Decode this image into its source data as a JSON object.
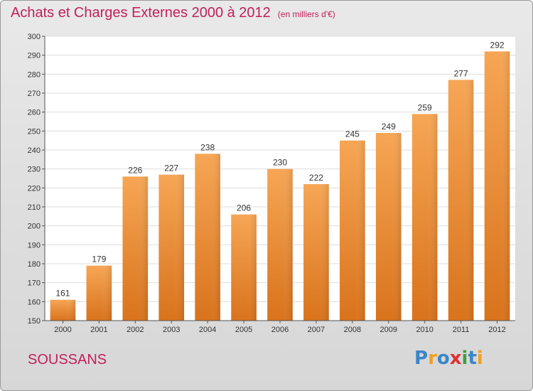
{
  "title": "Achats et Charges Externes 2000 à 2012",
  "unit": "(en milliers d'€)",
  "commune": "SOUSSANS",
  "logo": {
    "letters": [
      {
        "ch": "P",
        "color": "#3a86c8"
      },
      {
        "ch": "r",
        "color": "#f0a020"
      },
      {
        "ch": "o",
        "color": "#3a86c8"
      },
      {
        "ch": "x",
        "color": "#e03030"
      },
      {
        "ch": "i",
        "color": "#40a040"
      },
      {
        "ch": "t",
        "color": "#3a86c8"
      },
      {
        "ch": "i",
        "color": "#f0a020"
      }
    ]
  },
  "chart_data": {
    "type": "bar",
    "title": "Achats et Charges Externes 2000 à 2012",
    "categories": [
      "2000",
      "2001",
      "2002",
      "2003",
      "2004",
      "2005",
      "2006",
      "2007",
      "2008",
      "2009",
      "2010",
      "2011",
      "2012"
    ],
    "values": [
      161,
      179,
      226,
      227,
      238,
      206,
      230,
      222,
      245,
      249,
      259,
      277,
      292
    ],
    "ylim": [
      150,
      300
    ],
    "yticks": [
      150,
      160,
      170,
      180,
      190,
      200,
      210,
      220,
      230,
      240,
      250,
      260,
      270,
      280,
      290,
      300
    ],
    "grid": true,
    "bar_color": "#f0a04a"
  }
}
